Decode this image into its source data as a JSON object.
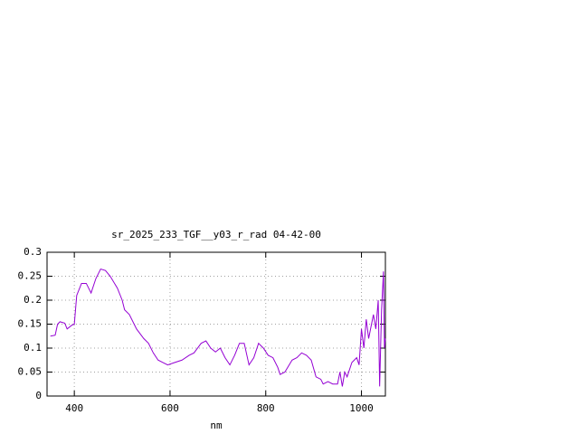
{
  "chart_data": {
    "type": "line",
    "title": "sr_2025_233_TGF__y03_r_rad 04-42-00",
    "xlabel": "nm",
    "x": [
      350,
      360,
      365,
      370,
      380,
      385,
      395,
      400,
      405,
      415,
      425,
      435,
      445,
      455,
      465,
      475,
      490,
      500,
      505,
      515,
      530,
      545,
      555,
      565,
      575,
      585,
      595,
      610,
      625,
      640,
      650,
      665,
      675,
      685,
      695,
      705,
      715,
      725,
      735,
      745,
      755,
      765,
      775,
      785,
      795,
      805,
      815,
      825,
      830,
      840,
      855,
      865,
      875,
      885,
      895,
      905,
      915,
      920,
      930,
      940,
      950,
      955,
      960,
      965,
      970,
      980,
      990,
      995,
      1000,
      1005,
      1010,
      1015,
      1025,
      1030,
      1035,
      1038,
      1042,
      1046,
      1048,
      1050
    ],
    "series": [
      {
        "name": "sr_2025_233_TGF__y03_r_rad",
        "color": "#9400d3",
        "values": [
          0.125,
          0.127,
          0.15,
          0.155,
          0.152,
          0.14,
          0.148,
          0.15,
          0.21,
          0.235,
          0.235,
          0.215,
          0.245,
          0.265,
          0.262,
          0.25,
          0.225,
          0.2,
          0.18,
          0.17,
          0.14,
          0.12,
          0.11,
          0.09,
          0.075,
          0.07,
          0.065,
          0.07,
          0.075,
          0.085,
          0.09,
          0.11,
          0.115,
          0.1,
          0.092,
          0.1,
          0.08,
          0.065,
          0.085,
          0.11,
          0.11,
          0.065,
          0.08,
          0.11,
          0.1,
          0.085,
          0.08,
          0.06,
          0.045,
          0.05,
          0.075,
          0.08,
          0.09,
          0.085,
          0.075,
          0.04,
          0.035,
          0.025,
          0.03,
          0.025,
          0.025,
          0.05,
          0.02,
          0.05,
          0.04,
          0.07,
          0.08,
          0.065,
          0.14,
          0.1,
          0.16,
          0.12,
          0.17,
          0.14,
          0.2,
          0.02,
          0.18,
          0.26,
          0.1,
          0.12
        ]
      }
    ],
    "xlim": [
      343,
      1050
    ],
    "ylim": [
      0,
      0.3
    ],
    "xticks": [
      400,
      600,
      800,
      1000
    ],
    "yticks": [
      0,
      0.05,
      0.1,
      0.15,
      0.2,
      0.25,
      0.3
    ],
    "grid": true
  }
}
